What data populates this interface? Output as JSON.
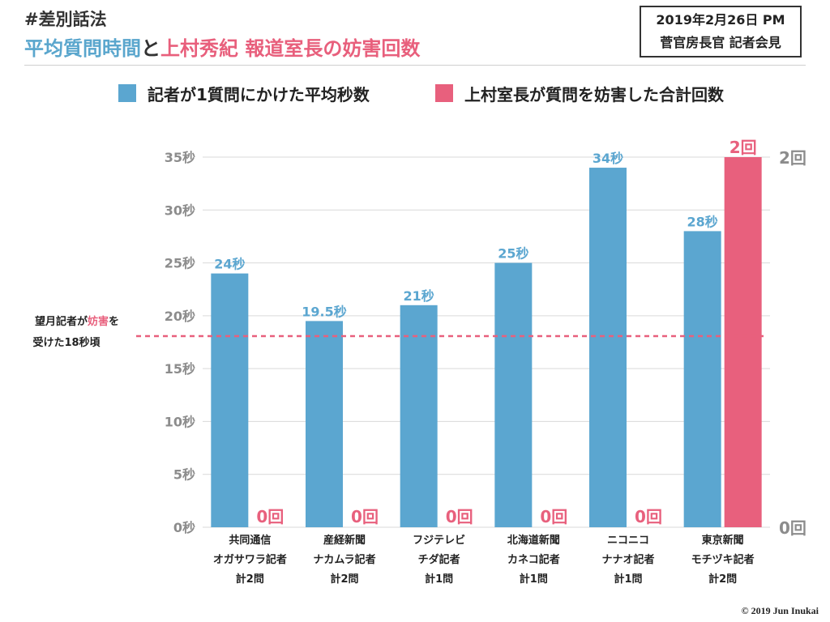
{
  "header": {
    "hashtag": "#差別話法",
    "title_part1": "平均質問時間",
    "title_part2": "と",
    "title_part3": "上村秀紀 報道室長の妨害回数",
    "date": "2019年2月26日 PM",
    "event": "菅官房長官 記者会見"
  },
  "legend": {
    "series_a": "記者が1質問にかけた平均秒数",
    "series_b": "上村室長が質問を妨害した合計回数"
  },
  "reference_line": {
    "value": 18,
    "line1_before": "望月記者が",
    "line1_highlight": "妨害",
    "line1_after": "を",
    "line2": "受けた18秒頃"
  },
  "chart_data": {
    "type": "bar",
    "categories": [
      [
        "共同通信",
        "オガサワラ記者",
        "計2問"
      ],
      [
        "産経新聞",
        "ナカムラ記者",
        "計2問"
      ],
      [
        "フジテレビ",
        "チダ記者",
        "計1問"
      ],
      [
        "北海道新聞",
        "カネコ記者",
        "計1問"
      ],
      [
        "ニコニコ",
        "ナナオ記者",
        "計1問"
      ],
      [
        "東京新聞",
        "モチヅキ記者",
        "計2問"
      ]
    ],
    "series": [
      {
        "name": "記者が1質問にかけた平均秒数",
        "axis": "left",
        "values": [
          24,
          19.5,
          21,
          25,
          34,
          28
        ],
        "labels": [
          "24秒",
          "19.5秒",
          "21秒",
          "25秒",
          "34秒",
          "28秒"
        ],
        "color": "#5ba6d0"
      },
      {
        "name": "上村室長が質問を妨害した合計回数",
        "axis": "right",
        "values": [
          0,
          0,
          0,
          0,
          0,
          2
        ],
        "labels": [
          "0回",
          "0回",
          "0回",
          "0回",
          "0回",
          "2回"
        ],
        "color": "#e8607d"
      }
    ],
    "y_left": {
      "ylim": [
        0,
        35
      ],
      "ticks": [
        0,
        5,
        10,
        15,
        20,
        25,
        30,
        35
      ],
      "tick_labels": [
        "0秒",
        "5秒",
        "10秒",
        "15秒",
        "20秒",
        "25秒",
        "30秒",
        "35秒"
      ]
    },
    "y_right": {
      "ylim": [
        0,
        2
      ],
      "ticks": [
        0,
        2
      ],
      "tick_labels": [
        "0回",
        "2回"
      ]
    },
    "grid": true,
    "legend_position": "top"
  },
  "colors": {
    "blue": "#5ba6d0",
    "pink": "#e8607d",
    "grid": "#d9d9d9",
    "axis_text": "#8c8c8c"
  },
  "footer": {
    "copyright": "© 2019 Jun Inukai"
  }
}
